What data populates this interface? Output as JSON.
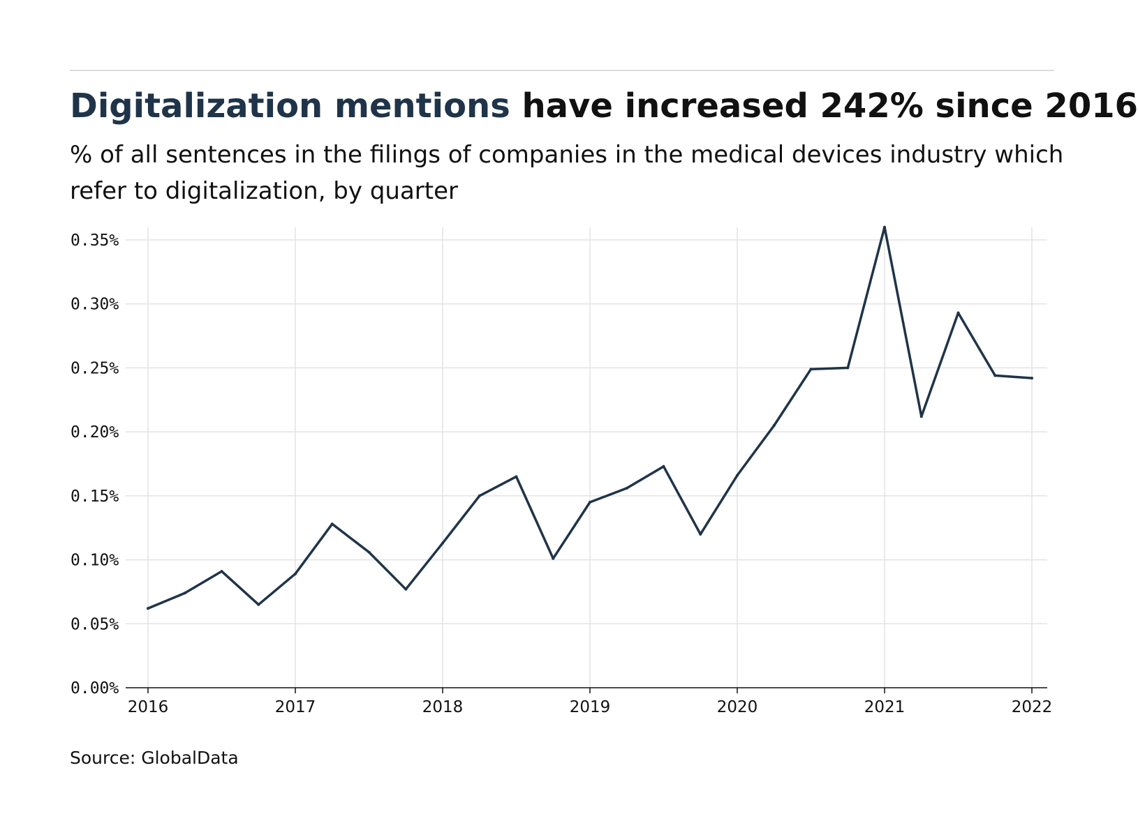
{
  "header": {
    "title_highlight": "Digitalization mentions",
    "title_rest": " have increased 242% since 2016",
    "subtitle": "% of all sentences in the filings of companies in the medical devices industry which refer to digitalization, by quarter"
  },
  "footer": {
    "source": "Source: GlobalData"
  },
  "colors": {
    "accent": "#1f3449",
    "line": "#1f3449",
    "grid": "#e3e3e3"
  },
  "chart_data": {
    "type": "line",
    "title": "Digitalization mentions have increased 242% since 2016",
    "subtitle": "% of all sentences in the filings of companies in the medical devices industry which refer to digitalization, by quarter",
    "xlabel": "",
    "ylabel": "",
    "xlim": [
      2016,
      2022
    ],
    "ylim": [
      0,
      0.36
    ],
    "grid": true,
    "legend": "none",
    "x_ticks": [
      {
        "value": 2016,
        "label": "2016"
      },
      {
        "value": 2017,
        "label": "2017"
      },
      {
        "value": 2018,
        "label": "2018"
      },
      {
        "value": 2019,
        "label": "2019"
      },
      {
        "value": 2020,
        "label": "2020"
      },
      {
        "value": 2021,
        "label": "2021"
      },
      {
        "value": 2022,
        "label": "2022"
      }
    ],
    "y_ticks": [
      {
        "value": 0.0,
        "label": "0.00%"
      },
      {
        "value": 0.05,
        "label": "0.05%"
      },
      {
        "value": 0.1,
        "label": "0.10%"
      },
      {
        "value": 0.15,
        "label": "0.15%"
      },
      {
        "value": 0.2,
        "label": "0.20%"
      },
      {
        "value": 0.25,
        "label": "0.25%"
      },
      {
        "value": 0.3,
        "label": "0.30%"
      },
      {
        "value": 0.35,
        "label": "0.35%"
      }
    ],
    "series": [
      {
        "x": [
          2016,
          2016.25,
          2016.5,
          2016.75,
          2017,
          2017.25,
          2017.5,
          2017.75,
          2018,
          2018.25,
          2018.5,
          2018.75,
          2019,
          2019.25,
          2019.5,
          2019.75,
          2020,
          2020.25,
          2020.5,
          2020.75,
          2021,
          2021.25,
          2021.5,
          2021.75,
          2022
        ],
        "values": [
          0.062,
          0.074,
          0.091,
          0.065,
          0.089,
          0.128,
          0.106,
          0.077,
          0.113,
          0.15,
          0.165,
          0.101,
          0.145,
          0.156,
          0.173,
          0.12,
          0.166,
          0.205,
          0.249,
          0.25,
          0.36,
          0.212,
          0.293,
          0.244,
          0.242
        ]
      }
    ]
  }
}
